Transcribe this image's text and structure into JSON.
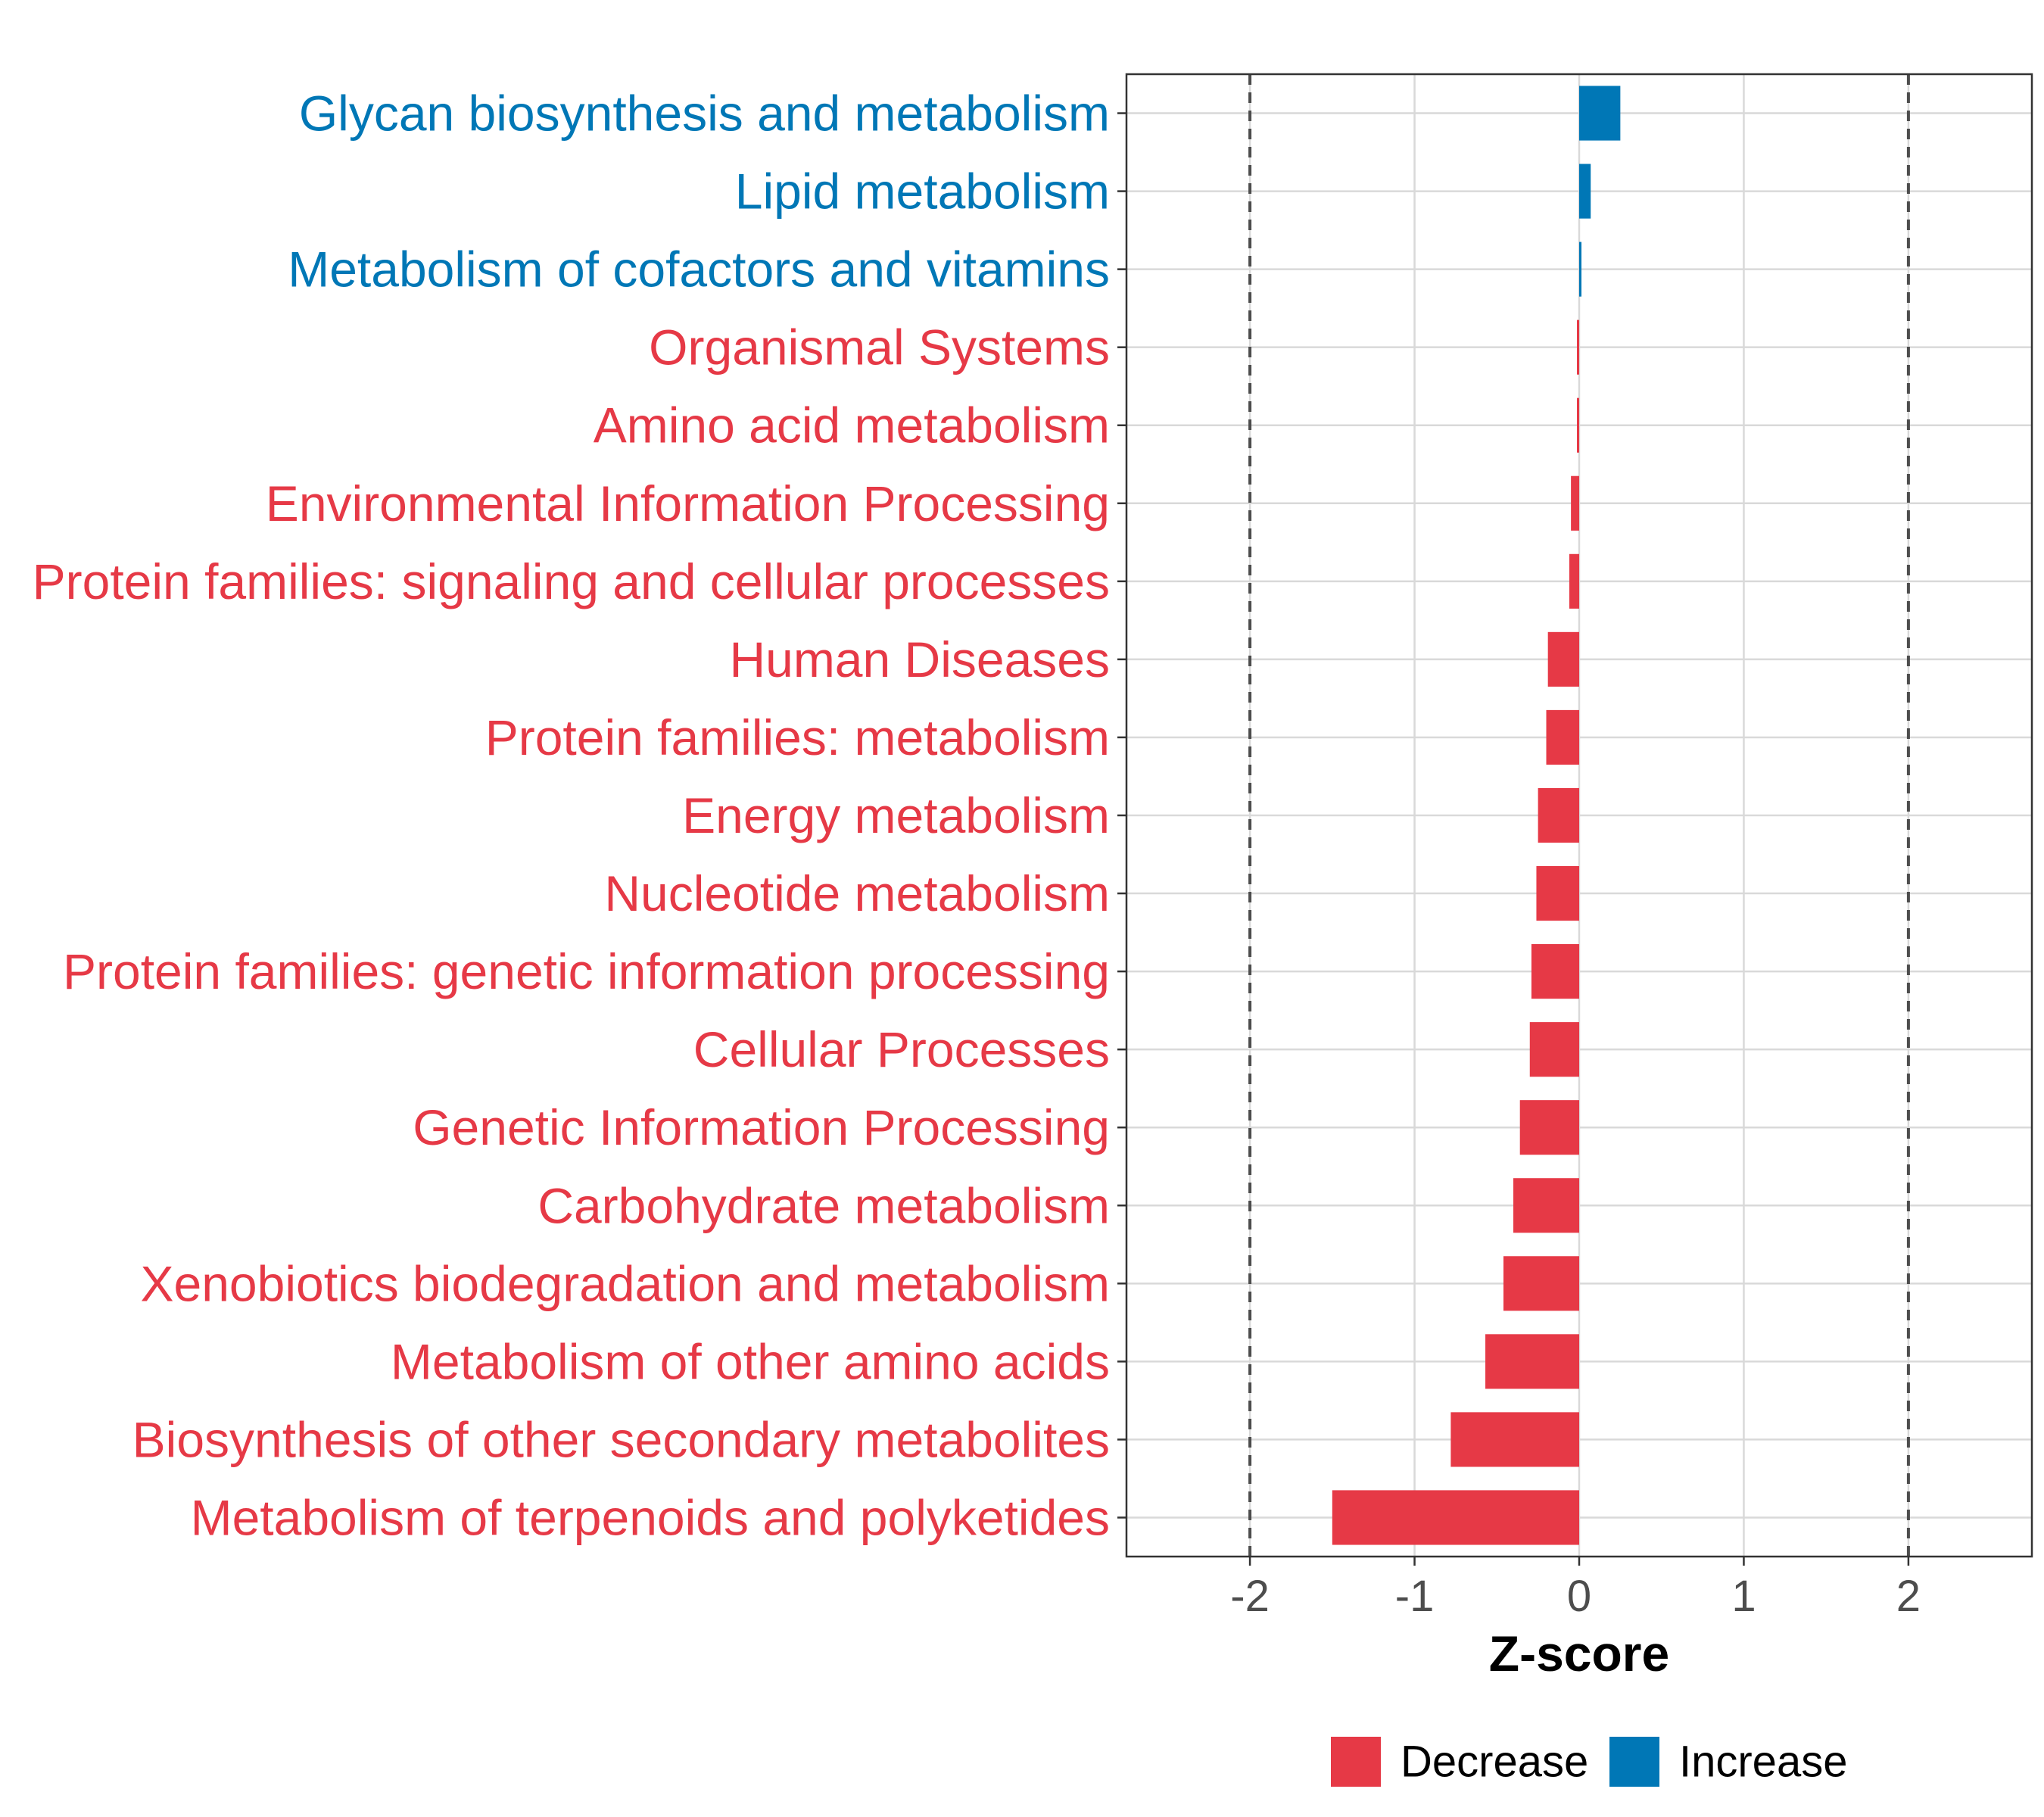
{
  "chart_data": {
    "type": "bar",
    "orientation": "horizontal",
    "categories": [
      "Glycan biosynthesis and metabolism",
      "Lipid metabolism",
      "Metabolism of cofactors and vitamins",
      "Organismal Systems",
      "Amino acid metabolism",
      "Environmental Information Processing",
      "Protein families: signaling and cellular processes",
      "Human Diseases",
      "Protein families: metabolism",
      "Energy metabolism",
      "Nucleotide metabolism",
      "Protein families: genetic information processing",
      "Cellular Processes",
      "Genetic Information Processing",
      "Carbohydrate metabolism",
      "Xenobiotics biodegradation and metabolism",
      "Metabolism of other amino acids",
      "Biosynthesis of other secondary metabolites",
      "Metabolism of terpenoids and polyketides"
    ],
    "values": [
      0.25,
      0.07,
      0.01,
      -0.01,
      -0.01,
      -0.05,
      -0.06,
      -0.19,
      -0.2,
      -0.25,
      -0.26,
      -0.29,
      -0.3,
      -0.36,
      -0.4,
      -0.46,
      -0.57,
      -0.78,
      -1.5
    ],
    "groups": [
      "Increase",
      "Increase",
      "Increase",
      "Decrease",
      "Decrease",
      "Decrease",
      "Decrease",
      "Decrease",
      "Decrease",
      "Decrease",
      "Decrease",
      "Decrease",
      "Decrease",
      "Decrease",
      "Decrease",
      "Decrease",
      "Decrease",
      "Decrease",
      "Decrease"
    ],
    "xlabel": "Z-score",
    "ylabel": "",
    "xlim": [
      -2.75,
      2.75
    ],
    "xticks": [
      -2,
      -1,
      0,
      1,
      2
    ],
    "xtick_labels": [
      "-2",
      "-1",
      "0",
      "1",
      "2"
    ],
    "reference_lines": [
      -2,
      2
    ],
    "grid": true,
    "legend": {
      "position": "bottom",
      "entries": [
        {
          "label": "Decrease",
          "color": "#E63946"
        },
        {
          "label": "Increase",
          "color": "#0077B6"
        }
      ]
    },
    "colors": {
      "Decrease": "#E63946",
      "Increase": "#0077B6"
    }
  }
}
